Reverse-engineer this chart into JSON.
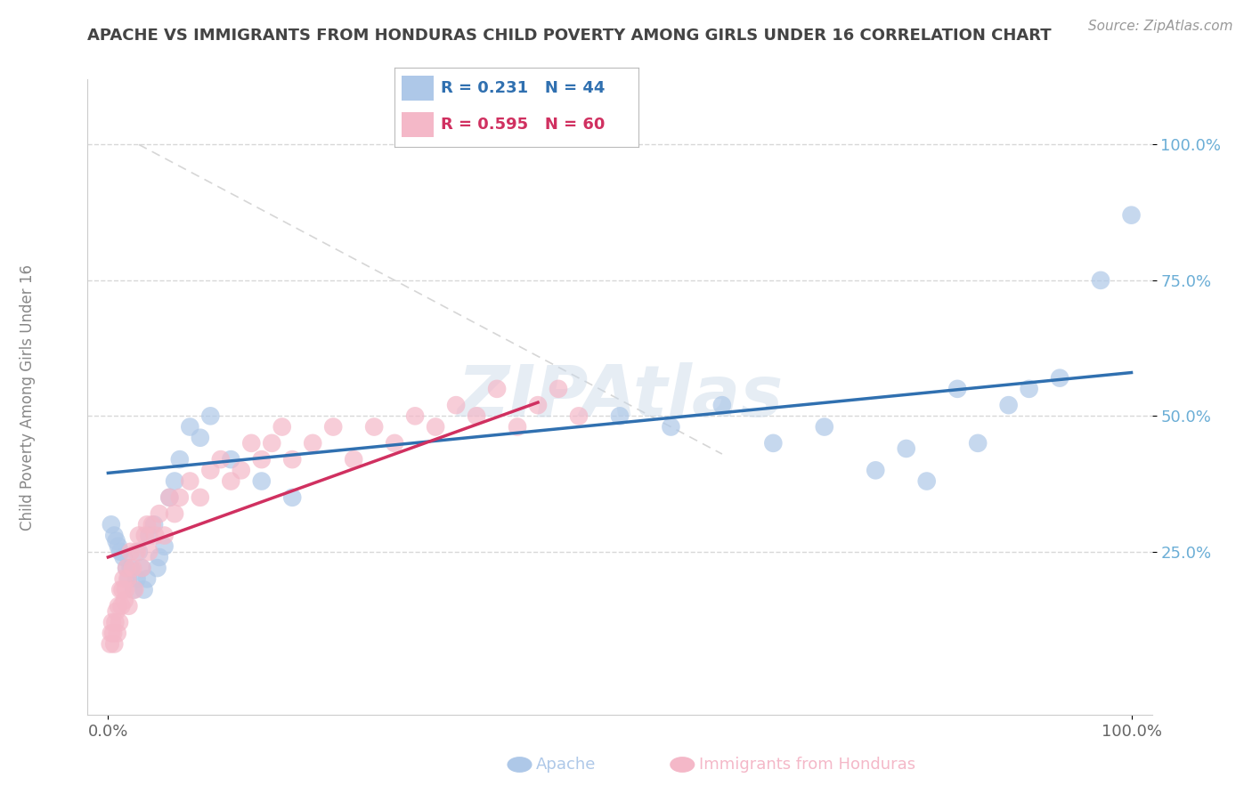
{
  "title": "APACHE VS IMMIGRANTS FROM HONDURAS CHILD POVERTY AMONG GIRLS UNDER 16 CORRELATION CHART",
  "source": "Source: ZipAtlas.com",
  "ylabel": "Child Poverty Among Girls Under 16",
  "xlim": [
    -0.02,
    1.02
  ],
  "ylim": [
    -0.05,
    1.12
  ],
  "x_tick_labels": [
    "0.0%",
    "100.0%"
  ],
  "x_tick_pos": [
    0.0,
    1.0
  ],
  "y_tick_labels": [
    "25.0%",
    "50.0%",
    "75.0%",
    "100.0%"
  ],
  "y_tick_values": [
    0.25,
    0.5,
    0.75,
    1.0
  ],
  "grid_color": "#d8d8d8",
  "background_color": "#ffffff",
  "watermark": "ZIPAtlas",
  "legend_R1": "R = 0.231",
  "legend_N1": "N = 44",
  "legend_R2": "R = 0.595",
  "legend_N2": "N = 60",
  "apache_color": "#aec8e8",
  "honduras_color": "#f4b8c8",
  "apache_line_color": "#3070b0",
  "honduras_line_color": "#d03060",
  "apache_scatter": {
    "x": [
      0.003,
      0.006,
      0.008,
      0.01,
      0.012,
      0.015,
      0.018,
      0.02,
      0.022,
      0.025,
      0.028,
      0.03,
      0.033,
      0.035,
      0.038,
      0.04,
      0.045,
      0.048,
      0.05,
      0.055,
      0.06,
      0.065,
      0.07,
      0.08,
      0.09,
      0.1,
      0.12,
      0.15,
      0.18,
      0.5,
      0.55,
      0.6,
      0.65,
      0.7,
      0.75,
      0.78,
      0.8,
      0.83,
      0.85,
      0.88,
      0.9,
      0.93,
      0.97,
      1.0
    ],
    "y": [
      0.3,
      0.28,
      0.27,
      0.26,
      0.25,
      0.24,
      0.22,
      0.2,
      0.22,
      0.18,
      0.2,
      0.25,
      0.22,
      0.18,
      0.2,
      0.28,
      0.3,
      0.22,
      0.24,
      0.26,
      0.35,
      0.38,
      0.42,
      0.48,
      0.46,
      0.5,
      0.42,
      0.38,
      0.35,
      0.5,
      0.48,
      0.52,
      0.45,
      0.48,
      0.4,
      0.44,
      0.38,
      0.55,
      0.45,
      0.52,
      0.55,
      0.57,
      0.75,
      0.87
    ]
  },
  "honduras_scatter": {
    "x": [
      0.002,
      0.003,
      0.004,
      0.005,
      0.006,
      0.007,
      0.008,
      0.009,
      0.01,
      0.011,
      0.012,
      0.013,
      0.014,
      0.015,
      0.016,
      0.017,
      0.018,
      0.019,
      0.02,
      0.022,
      0.024,
      0.026,
      0.028,
      0.03,
      0.033,
      0.036,
      0.038,
      0.04,
      0.043,
      0.046,
      0.05,
      0.055,
      0.06,
      0.065,
      0.07,
      0.08,
      0.09,
      0.1,
      0.11,
      0.12,
      0.13,
      0.14,
      0.15,
      0.16,
      0.17,
      0.18,
      0.2,
      0.22,
      0.24,
      0.26,
      0.28,
      0.3,
      0.32,
      0.34,
      0.36,
      0.38,
      0.4,
      0.42,
      0.44,
      0.46
    ],
    "y": [
      0.08,
      0.1,
      0.12,
      0.1,
      0.08,
      0.12,
      0.14,
      0.1,
      0.15,
      0.12,
      0.18,
      0.15,
      0.18,
      0.2,
      0.16,
      0.18,
      0.22,
      0.2,
      0.15,
      0.25,
      0.22,
      0.18,
      0.25,
      0.28,
      0.22,
      0.28,
      0.3,
      0.25,
      0.3,
      0.28,
      0.32,
      0.28,
      0.35,
      0.32,
      0.35,
      0.38,
      0.35,
      0.4,
      0.42,
      0.38,
      0.4,
      0.45,
      0.42,
      0.45,
      0.48,
      0.42,
      0.45,
      0.48,
      0.42,
      0.48,
      0.45,
      0.5,
      0.48,
      0.52,
      0.5,
      0.55,
      0.48,
      0.52,
      0.55,
      0.5
    ]
  },
  "apache_line": {
    "x0": 0.0,
    "x1": 1.0,
    "y0": 0.395,
    "y1": 0.58
  },
  "honduras_line": {
    "x0": 0.0,
    "x1": 0.42,
    "y0": 0.24,
    "y1": 0.525
  },
  "diagonal_line": {
    "x0": 0.03,
    "x1": 0.6,
    "y0": 1.0,
    "y1": 0.43
  }
}
